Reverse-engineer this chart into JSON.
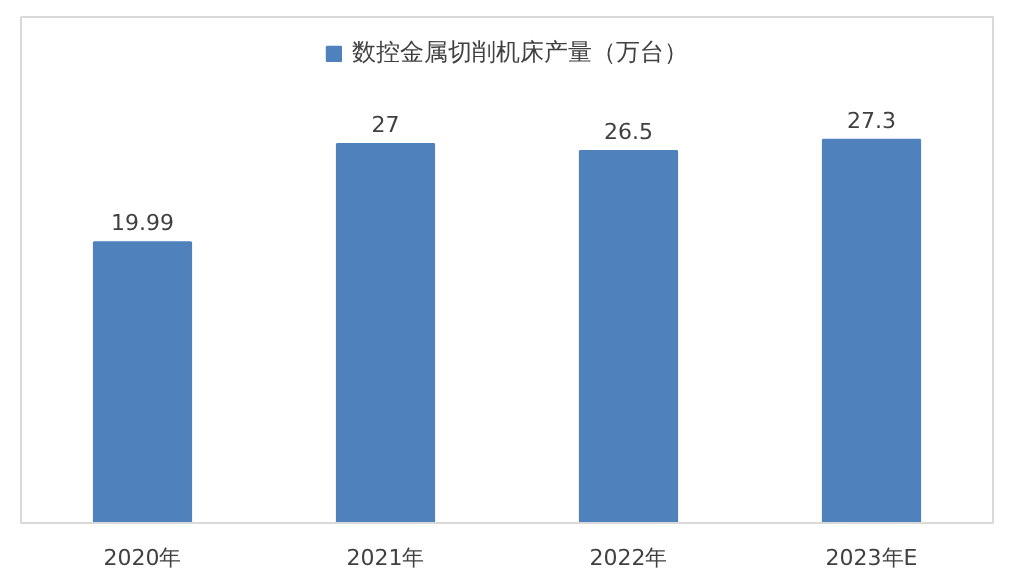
{
  "chart_data": {
    "type": "bar",
    "categories": [
      "2020年",
      "2021年",
      "2022年",
      "2023年E"
    ],
    "series": [
      {
        "name": "数控金属切削机床产量（万台）",
        "color": "#4f81bd",
        "values": [
          19.99,
          27,
          26.5,
          27.3
        ]
      }
    ],
    "data_labels": true,
    "legend": "top",
    "grid": false,
    "tick_labels": "x"
  }
}
